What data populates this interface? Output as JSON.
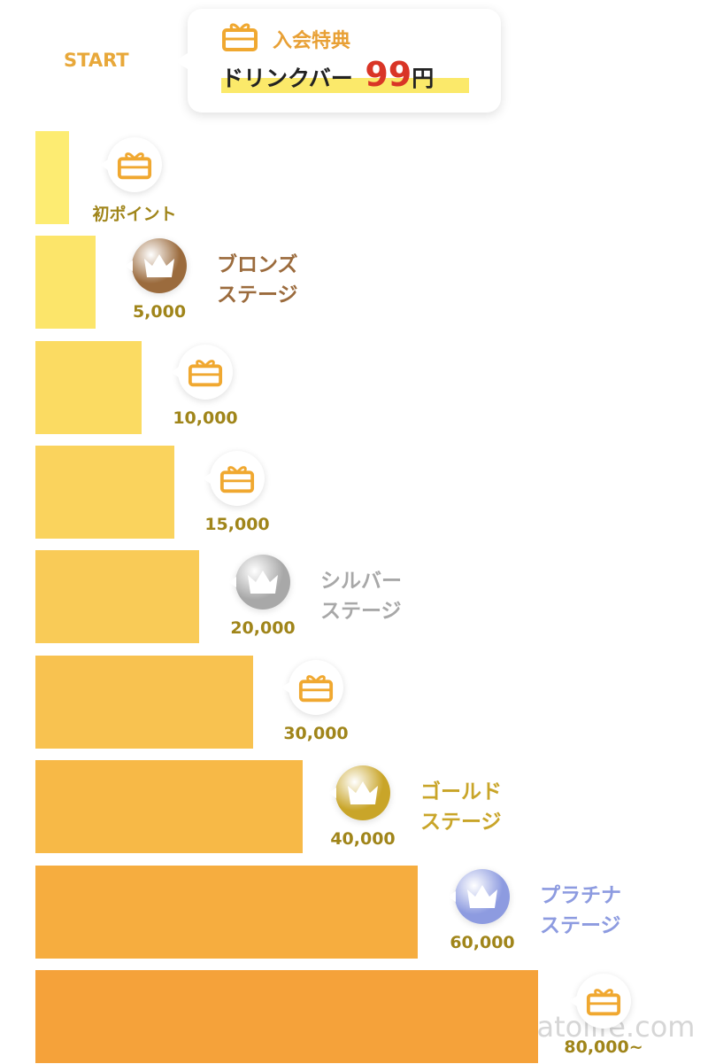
{
  "start": "START",
  "intro": {
    "title": "入会特典",
    "item": "ドリンクバー",
    "price": "99",
    "unit": "円"
  },
  "tiers": [
    {
      "label": "初ポイント"
    },
    {
      "label": "5,000",
      "stage": [
        "ブロンズ",
        "ステージ"
      ],
      "color": "#9b6b3d"
    },
    {
      "label": "10,000"
    },
    {
      "label": "15,000"
    },
    {
      "label": "20,000",
      "stage": [
        "シルバー",
        "ステージ"
      ],
      "color": "#a8a8a8"
    },
    {
      "label": "30,000"
    },
    {
      "label": "40,000",
      "stage": [
        "ゴールド",
        "ステージ"
      ],
      "color": "#c9a529"
    },
    {
      "label": "60,000",
      "stage": [
        "プラチナ",
        "ステージ"
      ],
      "color": "#8d9be0"
    },
    {
      "label": "80,000~"
    }
  ],
  "watermark": "□□□□□hatolife.com"
}
